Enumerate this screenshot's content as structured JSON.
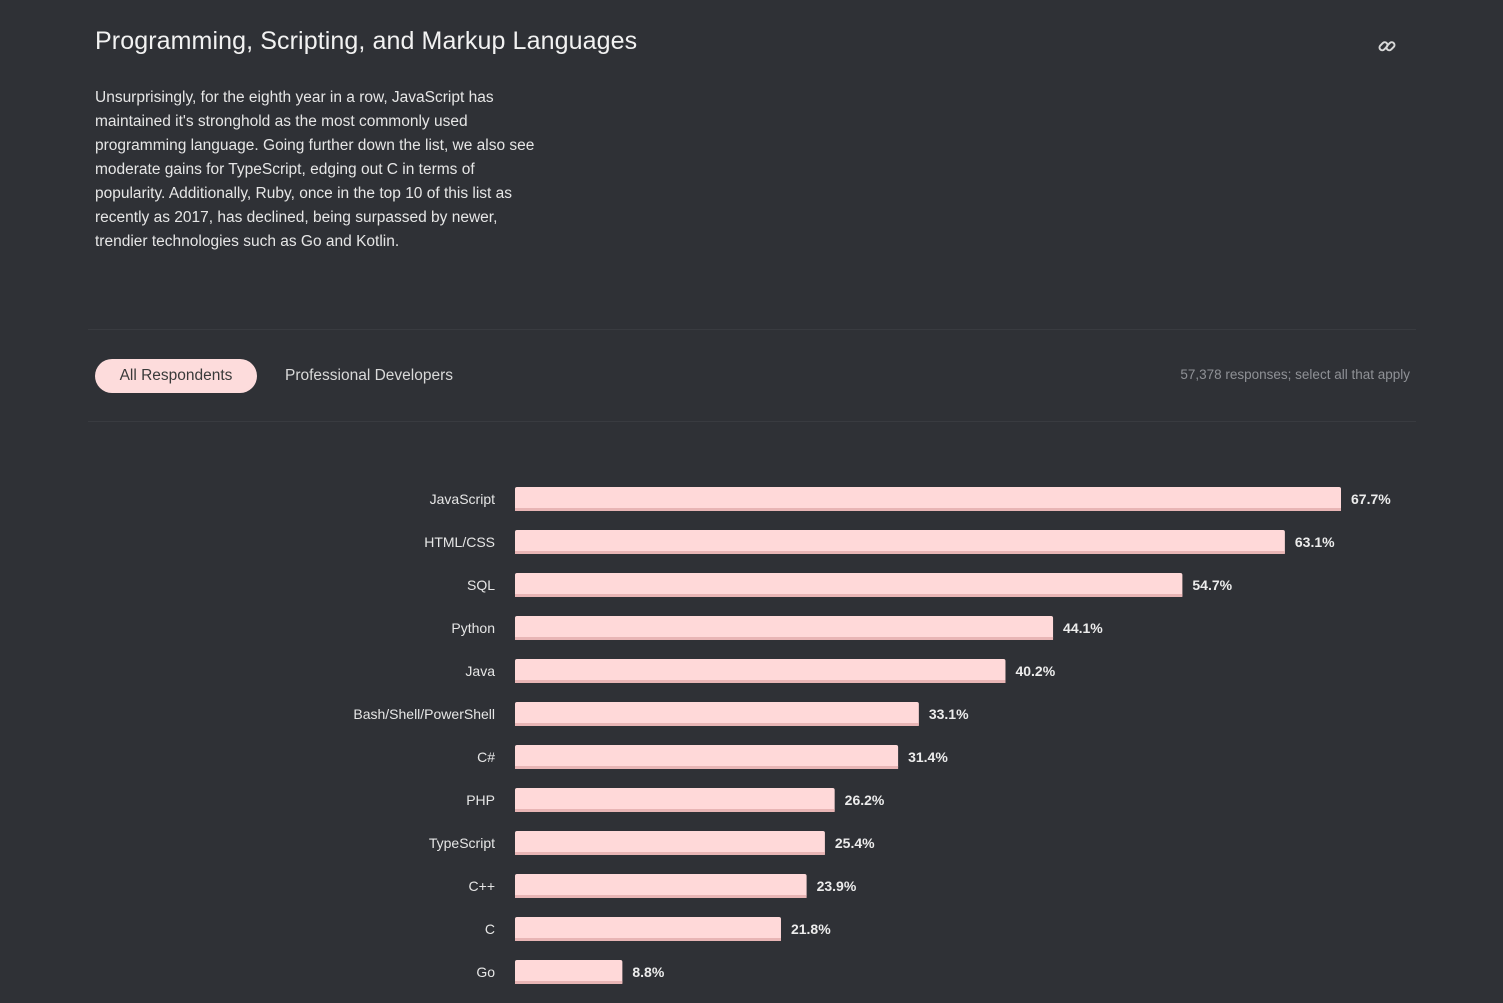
{
  "section": {
    "title": "Programming, Scripting, and Markup Languages",
    "intro": "Unsurprisingly, for the eighth year in a row, JavaScript has maintained it's stronghold as the most commonly used programming language. Going further down the list, we also see moderate gains for TypeScript, edging out C in terms of popularity. Additionally, Ruby, once in the top 10 of this list as recently as 2017, has declined, being surpassed by newer, trendier technologies such as Go and Kotlin.",
    "link_icon": "link-icon"
  },
  "tabs": [
    {
      "label": "All Respondents",
      "selected": true
    },
    {
      "label": "Professional Developers",
      "selected": false
    }
  ],
  "responses_note": "57,378 responses; select all that apply",
  "colors": {
    "background": "#2f3136",
    "bar": "#ffd9d9",
    "bar_edge": "#e8b5b5",
    "tab_selected_bg": "#fddcdc"
  },
  "chart_data": {
    "type": "bar",
    "orientation": "horizontal",
    "categories": [
      "JavaScript",
      "HTML/CSS",
      "SQL",
      "Python",
      "Java",
      "Bash/Shell/PowerShell",
      "C#",
      "PHP",
      "TypeScript",
      "C++",
      "C",
      "Go"
    ],
    "values": [
      67.7,
      63.1,
      54.7,
      44.1,
      40.2,
      33.1,
      31.4,
      26.2,
      25.4,
      23.9,
      21.8,
      8.8
    ],
    "value_labels": [
      "67.7%",
      "63.1%",
      "54.7%",
      "44.1%",
      "40.2%",
      "33.1%",
      "31.4%",
      "26.2%",
      "25.4%",
      "23.9%",
      "21.8%",
      "8.8%"
    ],
    "unit": "%",
    "grid": false,
    "legend": "none"
  }
}
